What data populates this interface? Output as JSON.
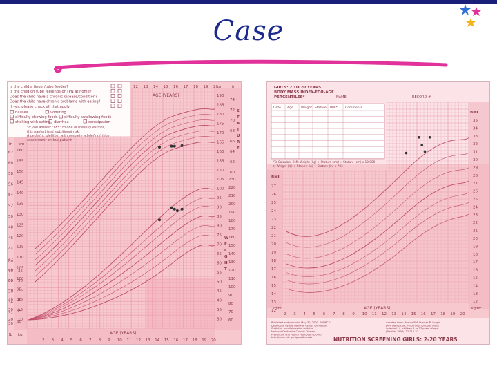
{
  "slide": {
    "title": "Case",
    "accent_color": "#1c2a8c",
    "underline_color": "#e0329a"
  },
  "left_chart": {
    "questions": [
      "Is the child a finger/tube feeder?",
      "Is the child on tube feedings or TPN at home?",
      "Does the child have a chronic disease/condition?",
      "Does the child have chronic problems with eating?",
      "If yes, please check all that apply:"
    ],
    "options": {
      "nausea": "nausea",
      "vomiting": "vomiting",
      "difficulty_chewing": "difficulty chewing foods",
      "difficulty_swallowing": "difficulty swallowing foods",
      "choking": "choking with eating",
      "diarrhea": "diarrhea",
      "constipation": "constipation"
    },
    "note_line1": "*If you answer \"YES\" to one of these questions,",
    "note_line2": "this patient is at nutritional risk.",
    "note_line3": "A pediatric dietitian will complete a brief nutrition",
    "note_line4": "assessment on this patient.",
    "age_label": "AGE (YEARS)",
    "age_top": [
      "12",
      "13",
      "14",
      "15",
      "16",
      "17",
      "18",
      "19",
      "20"
    ],
    "age_bottom": [
      "2",
      "3",
      "4",
      "5",
      "6",
      "7",
      "8",
      "9",
      "10",
      "11",
      "12",
      "13",
      "14",
      "15",
      "16",
      "17",
      "18",
      "19",
      "20"
    ],
    "unit_cm": "cm",
    "unit_in": "in",
    "unit_lb": "lb",
    "unit_kg": "kg",
    "stature_letters": [
      "S",
      "T",
      "A",
      "T",
      "U",
      "R",
      "E"
    ],
    "weight_letters": [
      "W",
      "E",
      "I",
      "G",
      "H",
      "T"
    ],
    "left_in_ticks": [
      "62",
      "60",
      "58",
      "56",
      "54",
      "52",
      "50",
      "48",
      "46",
      "44",
      "42",
      "40",
      "38",
      "36",
      "34",
      "32",
      "30"
    ],
    "left_cm_ticks": [
      "160",
      "155",
      "150",
      "145",
      "140",
      "135",
      "130",
      "125",
      "120",
      "115",
      "110",
      "105",
      "100",
      "95",
      "90",
      "85",
      "80"
    ],
    "right_cm_ticks": [
      "190",
      "185",
      "180",
      "175",
      "170",
      "165",
      "160",
      "155",
      "150"
    ],
    "right_in_ticks": [
      "74",
      "72",
      "70",
      "68",
      "66",
      "64",
      "62",
      "60"
    ],
    "right_kg_ticks": [
      "105",
      "100",
      "95",
      "90",
      "85",
      "80",
      "75",
      "70",
      "65",
      "60",
      "55",
      "50",
      "45",
      "40",
      "35",
      "30"
    ],
    "right_lb_ticks": [
      "230",
      "220",
      "210",
      "200",
      "190",
      "180",
      "170",
      "160",
      "150",
      "140",
      "130",
      "120",
      "110",
      "100",
      "90",
      "80",
      "70",
      "60"
    ],
    "bottom_lb_ticks": [
      "80",
      "70",
      "60",
      "50",
      "40",
      "30",
      "20"
    ],
    "bottom_kg_ticks": [
      "35",
      "30",
      "25",
      "20",
      "15",
      "10"
    ],
    "stature_points": [
      {
        "age": 14.5,
        "cm": 170
      },
      {
        "age": 15.8,
        "cm": 171
      },
      {
        "age": 16.1,
        "cm": 171
      },
      {
        "age": 16.9,
        "cm": 171.5
      }
    ],
    "weight_points": [
      {
        "age": 14.5,
        "kg": 59
      },
      {
        "age": 15.8,
        "kg": 67
      },
      {
        "age": 16.1,
        "kg": 66
      },
      {
        "age": 16.4,
        "kg": 65
      },
      {
        "age": 16.9,
        "kg": 66
      }
    ]
  },
  "right_chart": {
    "header1": "GIRLS: 2 TO 20 YEARS",
    "header2": "BODY MASS INDEX-FOR-AGE",
    "header3": "PERCENTILES*",
    "name_label": "NAME",
    "record_label": "RECORD #",
    "table_headers": [
      "Date",
      "Age",
      "Weight",
      "Stature",
      "BMI*",
      "Comments"
    ],
    "calc_line1": "*To Calculate BMI: Weight (kg) ÷ Stature (cm) ÷ Stature (cm) x 10,000",
    "calc_line2": "or Weight (lb) ÷ Stature (in) ÷ Stature (in) x 703",
    "bmi_label": "BMI",
    "kgm2_label": "kg/m²",
    "age_label": "AGE (YEARS)",
    "bmi_left_ticks": [
      "27",
      "26",
      "25",
      "24",
      "23",
      "22",
      "21",
      "20",
      "19",
      "18",
      "17",
      "16",
      "15",
      "14",
      "13",
      "12"
    ],
    "bmi_right_ticks": [
      "35",
      "34",
      "33",
      "32",
      "31",
      "30",
      "29",
      "28",
      "27",
      "26",
      "25",
      "24",
      "23",
      "22",
      "21",
      "20",
      "19",
      "18",
      "17",
      "16",
      "15",
      "14",
      "13",
      "12"
    ],
    "age_ticks": [
      "2",
      "3",
      "4",
      "5",
      "6",
      "7",
      "8",
      "9",
      "10",
      "11",
      "12",
      "13",
      "14",
      "15",
      "16",
      "17",
      "18",
      "19",
      "20"
    ],
    "footer_title": "NUTRITION SCREENING GIRLS: 2-20 YEARS",
    "footnote_left": "Published and provided May 30, 2000. SOURCE: Developed by the National Center for Health Statistics in collaboration with the National Center for Chronic Disease Prevention and Health Promotion (2000). http://www.cdc.gov/growthcharts",
    "footnote_right": "Adapted from: Rosner BM, Prineas R, Loggie JMH, Daniels SR. Percentiles for body mass index in U.S. children 5 to 17 years of age. J Pediatr 1998;132:211-22.",
    "bmi_points": [
      {
        "age": 14.5,
        "bmi": 31
      },
      {
        "age": 15.8,
        "bmi": 33
      },
      {
        "age": 16.1,
        "bmi": 32
      },
      {
        "age": 16.4,
        "bmi": 31.2
      },
      {
        "age": 16.9,
        "bmi": 33
      }
    ]
  }
}
